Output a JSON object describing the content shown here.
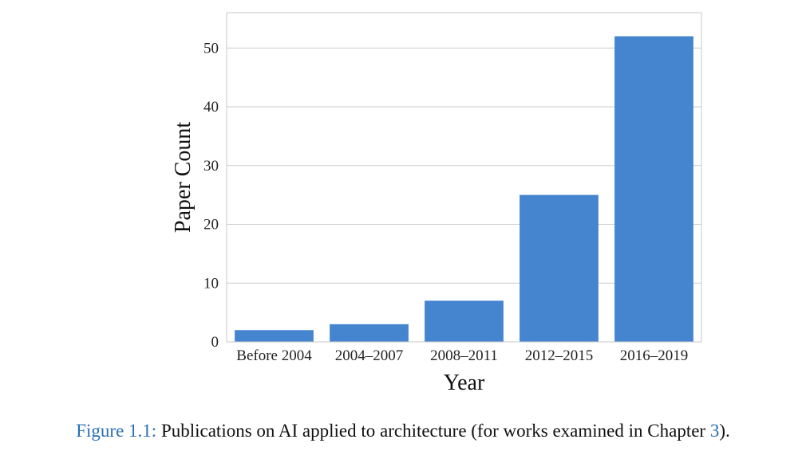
{
  "chart_data": {
    "type": "bar",
    "categories": [
      "Before 2004",
      "2004–2007",
      "2008–2011",
      "2012–2015",
      "2016–2019"
    ],
    "values": [
      2,
      3,
      7,
      25,
      52
    ],
    "xlabel": "Year",
    "ylabel": "Paper Count",
    "ylim": [
      0,
      56
    ],
    "yticks": [
      "0",
      "10",
      "20",
      "30",
      "40",
      "50"
    ],
    "grid": true,
    "bar_color": "#4584cf",
    "grid_color": "#cccccc"
  },
  "caption": {
    "label": "Figure 1.1:",
    "text_before": " Publications on AI applied to architecture (for works examined in Chapter ",
    "ref": "3",
    "text_after": ")."
  }
}
